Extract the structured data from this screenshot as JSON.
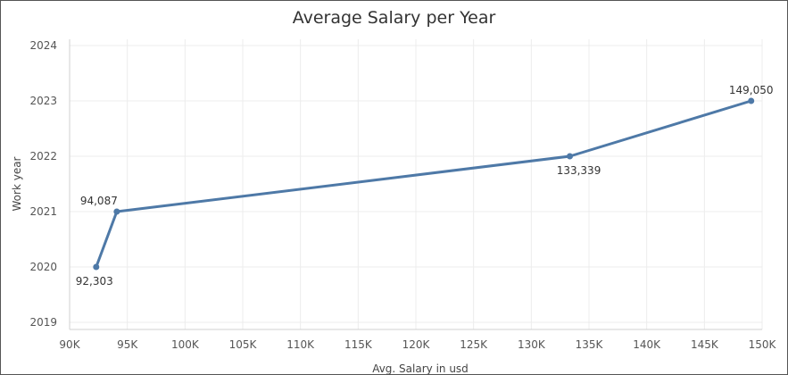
{
  "chart_data": {
    "type": "line",
    "title": "Average Salary per Year",
    "xlabel": "Avg. Salary in usd",
    "ylabel": "Work year",
    "xlim": [
      90000,
      150000
    ],
    "ylim": [
      2019,
      2024
    ],
    "x_ticks": [
      {
        "value": 90000,
        "label": "90K"
      },
      {
        "value": 95000,
        "label": "95K"
      },
      {
        "value": 100000,
        "label": "100K"
      },
      {
        "value": 105000,
        "label": "105K"
      },
      {
        "value": 110000,
        "label": "110K"
      },
      {
        "value": 115000,
        "label": "115K"
      },
      {
        "value": 120000,
        "label": "120K"
      },
      {
        "value": 125000,
        "label": "125K"
      },
      {
        "value": 130000,
        "label": "130K"
      },
      {
        "value": 135000,
        "label": "135K"
      },
      {
        "value": 140000,
        "label": "140K"
      },
      {
        "value": 145000,
        "label": "145K"
      },
      {
        "value": 150000,
        "label": "150K"
      }
    ],
    "y_ticks": [
      {
        "value": 2019,
        "label": "2019"
      },
      {
        "value": 2020,
        "label": "2020"
      },
      {
        "value": 2021,
        "label": "2021"
      },
      {
        "value": 2022,
        "label": "2022"
      },
      {
        "value": 2023,
        "label": "2023"
      },
      {
        "value": 2024,
        "label": "2024"
      }
    ],
    "grid": true,
    "line_color": "#4e79a7",
    "points": [
      {
        "x": 92303,
        "y": 2020,
        "label": "92,303",
        "label_pos": "below"
      },
      {
        "x": 94087,
        "y": 2021,
        "label": "94,087",
        "label_pos": "above-left"
      },
      {
        "x": 133339,
        "y": 2022,
        "label": "133,339",
        "label_pos": "below"
      },
      {
        "x": 149050,
        "y": 2023,
        "label": "149,050",
        "label_pos": "above"
      }
    ]
  }
}
